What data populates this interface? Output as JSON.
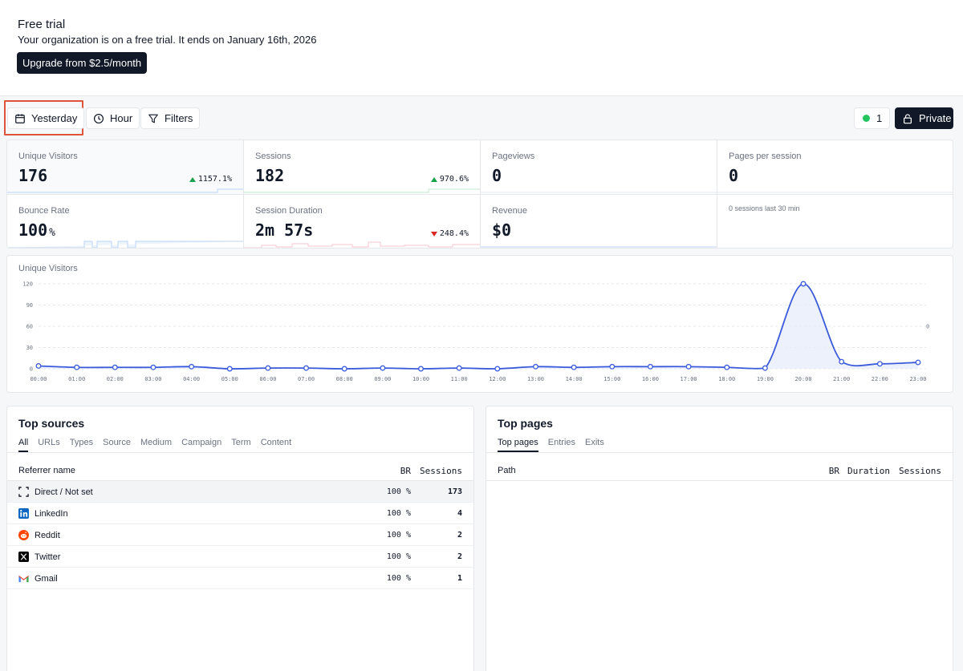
{
  "trial": {
    "title": "Free trial",
    "text": "Your organization is on a free trial. It ends on January 16th, 2026",
    "upgrade_label": "Upgrade from $2.5/month"
  },
  "toolbar": {
    "date_label": "Yesterday",
    "interval_label": "Hour",
    "filters_label": "Filters",
    "online_count": "1",
    "private_label": "Private"
  },
  "metrics": [
    {
      "label": "Unique Visitors",
      "value": "176",
      "unit": "",
      "change": "1157.1%",
      "direction": "up"
    },
    {
      "label": "Sessions",
      "value": "182",
      "unit": "",
      "change": "970.6%",
      "direction": "up"
    },
    {
      "label": "Pageviews",
      "value": "0",
      "unit": "",
      "change": "",
      "direction": ""
    },
    {
      "label": "Pages per session",
      "value": "0",
      "unit": "",
      "change": "",
      "direction": ""
    },
    {
      "label": "Bounce Rate",
      "value": "100",
      "unit": "%",
      "change": "",
      "direction": ""
    },
    {
      "label": "Session Duration",
      "value": "2m 57s",
      "unit": "",
      "change": "248.4%",
      "direction": "down"
    },
    {
      "label": "Revenue",
      "value": "$0",
      "unit": "",
      "change": "",
      "direction": ""
    },
    {
      "note": "0 sessions last 30 min"
    }
  ],
  "chart_data": {
    "type": "area",
    "title": "Unique Visitors",
    "x": [
      "00:00",
      "01:00",
      "02:00",
      "03:00",
      "04:00",
      "05:00",
      "06:00",
      "07:00",
      "08:00",
      "09:00",
      "10:00",
      "11:00",
      "12:00",
      "13:00",
      "14:00",
      "15:00",
      "16:00",
      "17:00",
      "18:00",
      "19:00",
      "20:00",
      "21:00",
      "22:00",
      "23:00"
    ],
    "series": [
      {
        "values": [
          4,
          2,
          2,
          2,
          3,
          0,
          1,
          1,
          0,
          1,
          0,
          1,
          0,
          3,
          2,
          3,
          3,
          3,
          2,
          1,
          120,
          10,
          7,
          9
        ]
      }
    ],
    "ylim": [
      0,
      120
    ],
    "yticks": [
      "120",
      "90",
      "60",
      "30",
      "0"
    ],
    "right_axis_label": "0",
    "grid": true,
    "color": "#3b5bdb"
  },
  "top_sources": {
    "title": "Top sources",
    "tabs": [
      "All",
      "URLs",
      "Types",
      "Source",
      "Medium",
      "Campaign",
      "Term",
      "Content"
    ],
    "columns": [
      "Referrer name",
      "BR",
      "Sessions"
    ],
    "rows": [
      {
        "name": "Direct / Not set",
        "icon": "direct-icon",
        "br": "100 %",
        "sessions": "173"
      },
      {
        "name": "LinkedIn",
        "icon": "linkedin-icon",
        "br": "100 %",
        "sessions": "4"
      },
      {
        "name": "Reddit",
        "icon": "reddit-icon",
        "br": "100 %",
        "sessions": "2"
      },
      {
        "name": "Twitter",
        "icon": "twitter-x-icon",
        "br": "100 %",
        "sessions": "2"
      },
      {
        "name": "Gmail",
        "icon": "gmail-icon",
        "br": "100 %",
        "sessions": "1"
      }
    ]
  },
  "top_pages": {
    "title": "Top pages",
    "tabs": [
      "Top pages",
      "Entries",
      "Exits"
    ],
    "columns": [
      "Path",
      "BR",
      "Duration",
      "Sessions"
    ]
  }
}
